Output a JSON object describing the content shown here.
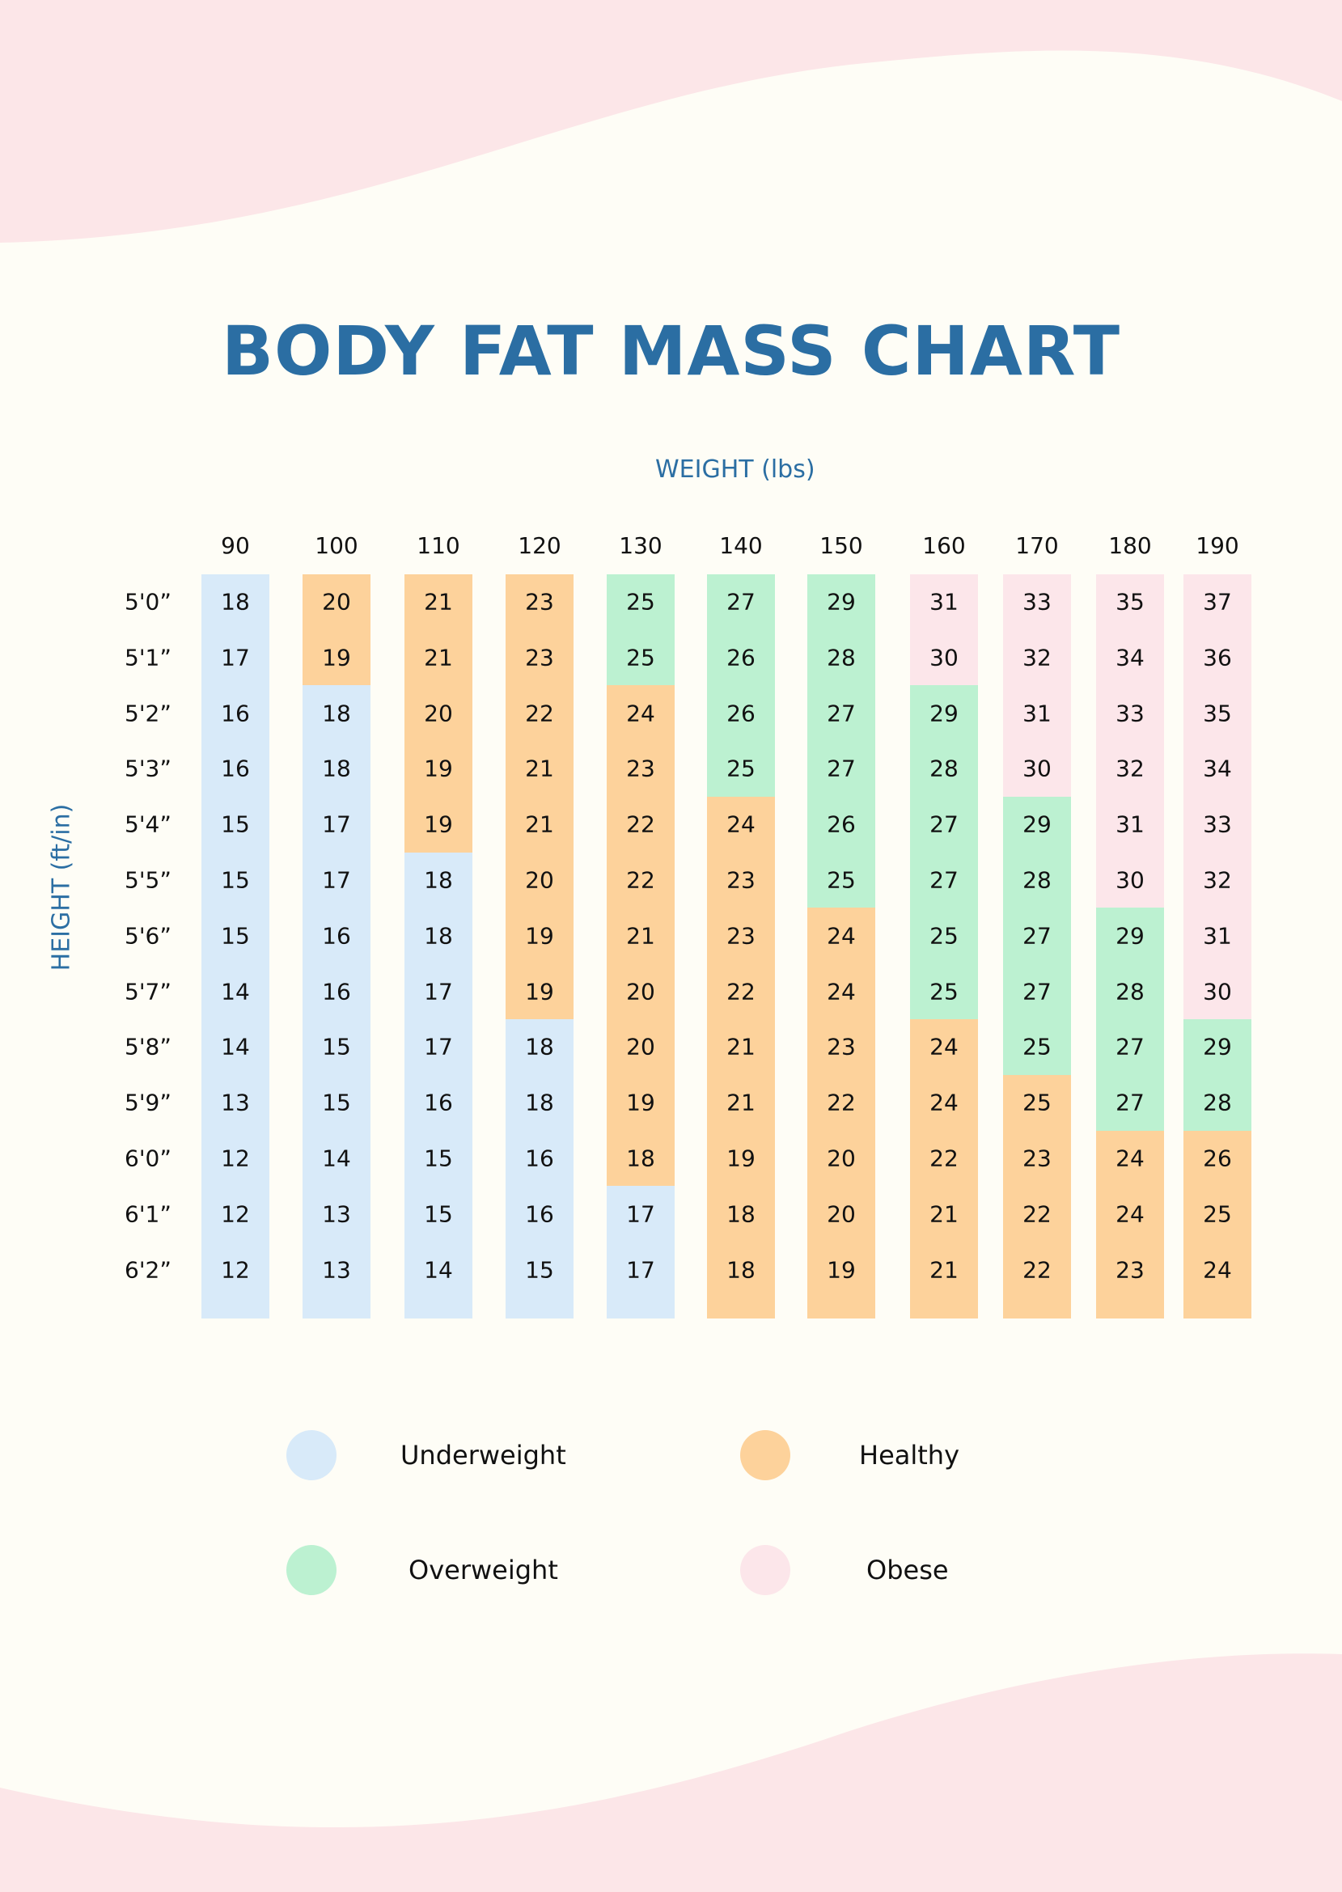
{
  "chart_data": {
    "type": "table",
    "title": "BODY FAT MASS CHART",
    "xlabel": "WEIGHT (lbs)",
    "ylabel": "HEIGHT (ft/in)",
    "weights": [
      "90",
      "100",
      "110",
      "120",
      "130",
      "140",
      "150",
      "160",
      "170",
      "180",
      "190"
    ],
    "heights": [
      "5'0”",
      "5'1”",
      "5'2”",
      "5'3”",
      "5'4”",
      "5'5”",
      "5'6”",
      "5'7”",
      "5'8”",
      "5'9”",
      "6'0”",
      "6'1”",
      "6'2”"
    ],
    "values": [
      [
        18,
        17,
        16,
        16,
        15,
        15,
        15,
        14,
        14,
        13,
        12,
        12,
        12
      ],
      [
        20,
        19,
        18,
        18,
        17,
        17,
        16,
        16,
        15,
        15,
        14,
        13,
        13
      ],
      [
        21,
        21,
        20,
        19,
        19,
        18,
        18,
        17,
        17,
        16,
        15,
        15,
        14
      ],
      [
        23,
        23,
        22,
        21,
        21,
        20,
        19,
        19,
        18,
        18,
        16,
        16,
        15
      ],
      [
        25,
        25,
        24,
        23,
        22,
        22,
        21,
        20,
        20,
        19,
        18,
        17,
        17
      ],
      [
        27,
        26,
        26,
        25,
        24,
        23,
        23,
        22,
        21,
        21,
        19,
        18,
        18
      ],
      [
        29,
        28,
        27,
        27,
        26,
        25,
        24,
        24,
        23,
        22,
        20,
        20,
        19
      ],
      [
        31,
        30,
        29,
        28,
        27,
        27,
        25,
        25,
        24,
        24,
        22,
        21,
        21
      ],
      [
        33,
        32,
        31,
        30,
        29,
        28,
        27,
        27,
        25,
        25,
        23,
        22,
        22
      ],
      [
        35,
        34,
        33,
        32,
        31,
        30,
        29,
        28,
        27,
        27,
        24,
        24,
        23
      ],
      [
        37,
        36,
        35,
        34,
        33,
        32,
        31,
        30,
        29,
        28,
        26,
        25,
        24
      ]
    ],
    "categories_by_column": [
      "UUUUUUUUUUUUU",
      "HHUUUUUUUUUUU",
      "HHHHHUUUUUUUU",
      "HHHHHHHHUUUUU",
      "OOHHHHHHHHHUU",
      "OOOOHHHHHHHHH",
      "OOOOOOHHHHHHH",
      "BBOOOOOOHHHHH",
      "BBBBOOOOOHHHH",
      "BBBBBBOOOOHHH",
      "BBBBBBBBOOHHH"
    ],
    "legend": [
      {
        "key": "U",
        "label": "Underweight",
        "color": "#d8eaf9"
      },
      {
        "key": "H",
        "label": "Healthy",
        "color": "#fdd29b"
      },
      {
        "key": "O",
        "label": "Overweight",
        "color": "#bcf1d1"
      },
      {
        "key": "B",
        "label": "Obese",
        "color": "#fce6ea"
      }
    ]
  },
  "colors": {
    "title": "#2b6ea3",
    "background": "#fefdf6",
    "wave": "#fce6e8"
  }
}
